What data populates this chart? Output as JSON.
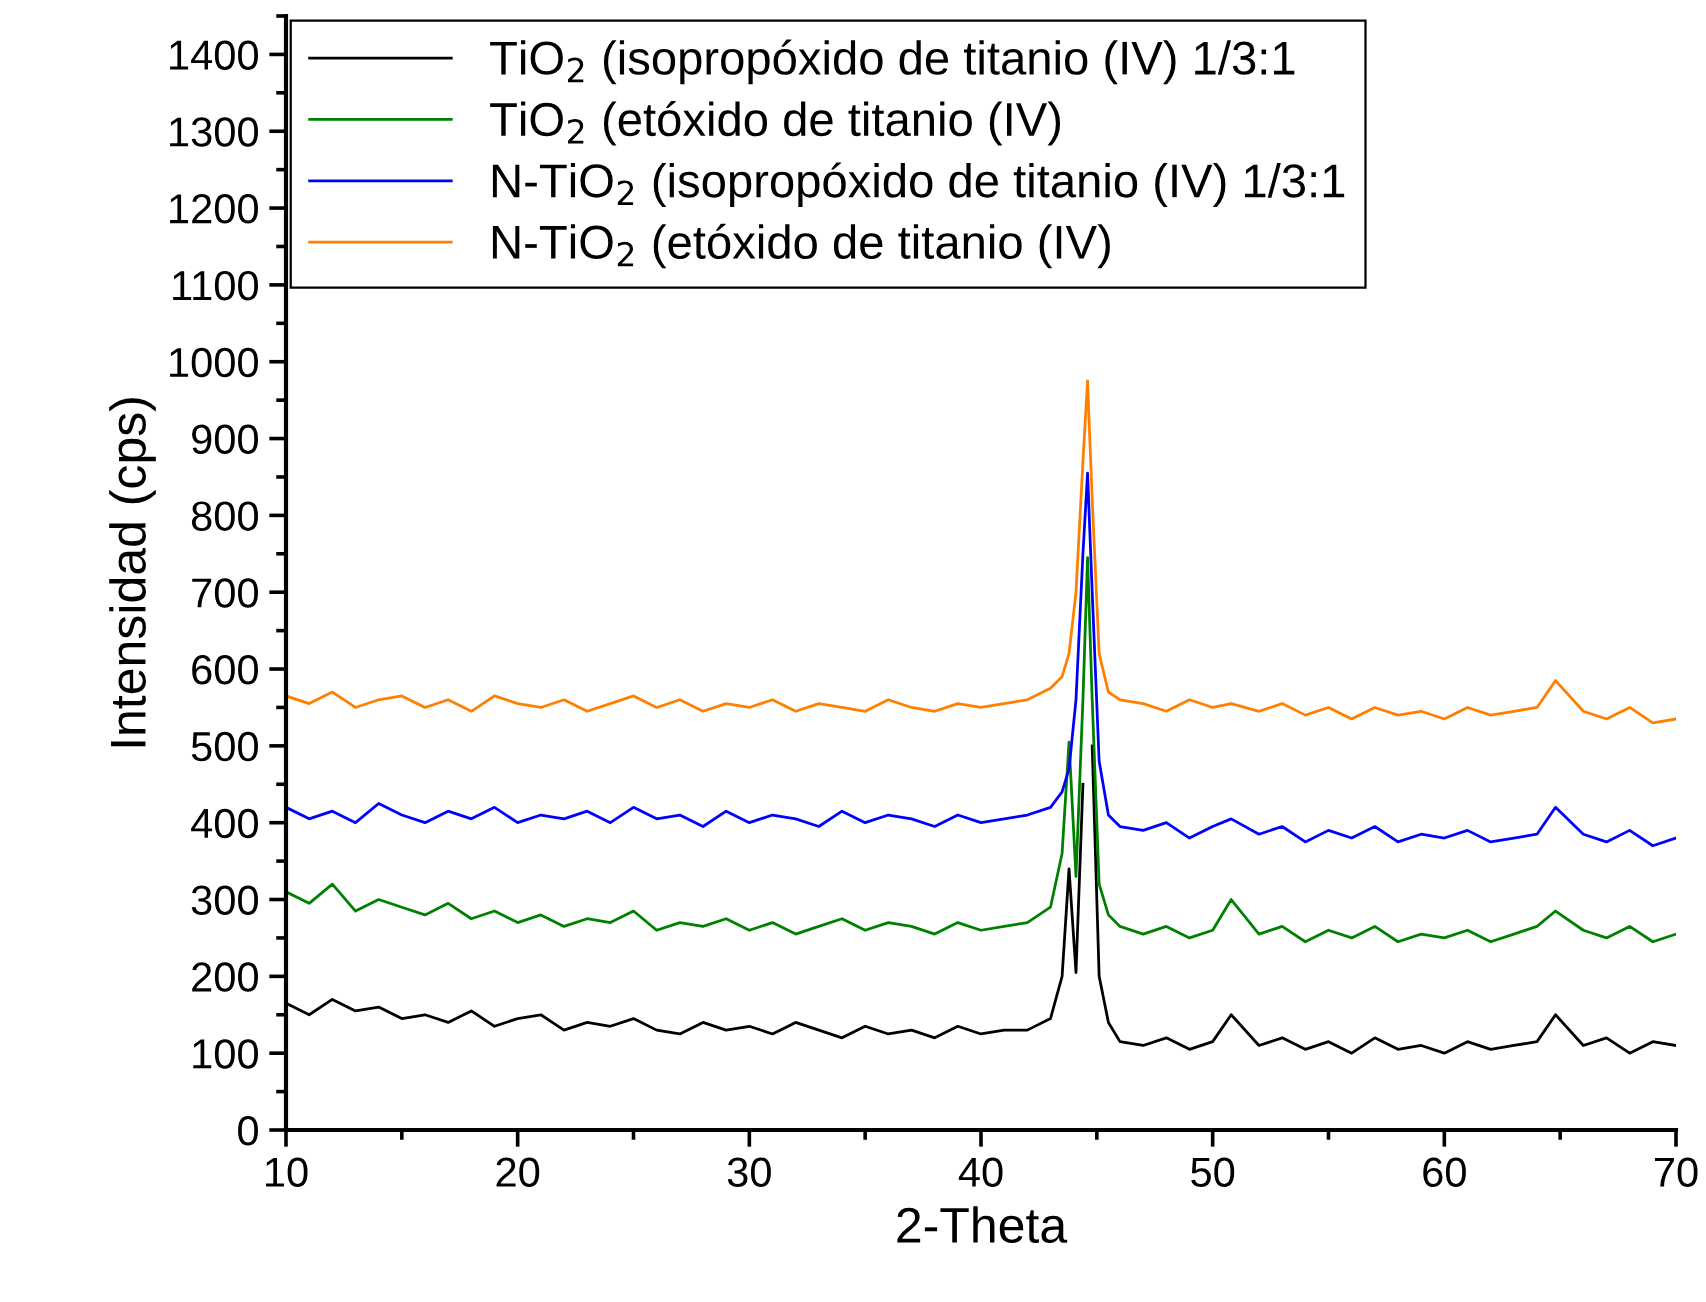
{
  "chart_data": {
    "type": "line",
    "xlabel": "2-Theta",
    "ylabel": "Intensidad (cps)",
    "x": [
      10,
      11,
      12,
      13,
      14,
      15,
      16,
      17,
      18,
      19,
      20,
      21,
      22,
      23,
      24,
      25,
      26,
      27,
      28,
      29,
      30,
      31,
      32,
      33,
      34,
      35,
      36,
      37,
      38,
      39,
      40,
      41,
      42,
      43,
      43.5,
      43.8,
      44.1,
      44.4,
      44.6,
      44.8,
      45.1,
      45.5,
      46,
      47,
      48,
      49,
      50,
      50.8,
      52,
      53,
      54,
      55,
      56,
      57,
      58,
      59,
      60,
      61,
      62,
      63,
      64,
      64.8,
      66,
      67,
      68,
      69,
      70
    ],
    "series": [
      {
        "name": "TiO$_{2}$ (isopropóxido de titanio (IV) 1/3:1",
        "color": "#000000",
        "values": [
          165,
          150,
          170,
          155,
          160,
          145,
          150,
          140,
          155,
          135,
          145,
          150,
          130,
          140,
          135,
          145,
          130,
          125,
          140,
          130,
          135,
          125,
          140,
          130,
          120,
          135,
          125,
          130,
          120,
          135,
          125,
          130,
          130,
          145,
          200,
          340,
          205,
          450,
          null,
          500,
          200,
          140,
          115,
          110,
          120,
          105,
          115,
          150,
          110,
          120,
          105,
          115,
          100,
          120,
          105,
          110,
          100,
          115,
          105,
          110,
          115,
          150,
          110,
          120,
          100,
          115,
          110
        ]
      },
      {
        "name": "TiO$_{2}$ (etóxido de titanio (IV)",
        "color": "#008000",
        "values": [
          310,
          295,
          320,
          285,
          300,
          290,
          280,
          295,
          275,
          285,
          270,
          280,
          265,
          275,
          270,
          285,
          260,
          270,
          265,
          275,
          260,
          270,
          255,
          265,
          275,
          260,
          270,
          265,
          255,
          270,
          260,
          265,
          270,
          290,
          360,
          505,
          330,
          560,
          745,
          560,
          320,
          280,
          265,
          255,
          265,
          250,
          260,
          300,
          255,
          265,
          245,
          260,
          250,
          265,
          245,
          255,
          250,
          260,
          245,
          255,
          265,
          285,
          260,
          250,
          265,
          245,
          255
        ]
      },
      {
        "name": "N-TiO$_{2}$ (isopropóxido de titanio (IV) 1/3:1",
        "color": "#0000ff",
        "values": [
          420,
          405,
          415,
          400,
          425,
          410,
          400,
          415,
          405,
          420,
          400,
          410,
          405,
          415,
          400,
          420,
          405,
          410,
          395,
          415,
          400,
          410,
          405,
          395,
          415,
          400,
          410,
          405,
          395,
          410,
          400,
          405,
          410,
          420,
          440,
          470,
          560,
          750,
          855,
          700,
          480,
          410,
          395,
          390,
          400,
          380,
          395,
          405,
          385,
          395,
          375,
          390,
          380,
          395,
          375,
          385,
          380,
          390,
          375,
          380,
          385,
          420,
          385,
          375,
          390,
          370,
          380
        ]
      },
      {
        "name": "N-TiO$_{2}$ (etóxido de titanio (IV)",
        "color": "#ff8000",
        "values": [
          565,
          555,
          570,
          550,
          560,
          565,
          550,
          560,
          545,
          565,
          555,
          550,
          560,
          545,
          555,
          565,
          550,
          560,
          545,
          555,
          550,
          560,
          545,
          555,
          550,
          545,
          560,
          550,
          545,
          555,
          550,
          555,
          560,
          575,
          590,
          620,
          700,
          870,
          975,
          820,
          620,
          570,
          560,
          555,
          545,
          560,
          550,
          555,
          545,
          555,
          540,
          550,
          535,
          550,
          540,
          545,
          535,
          550,
          540,
          545,
          550,
          585,
          545,
          535,
          550,
          530,
          535
        ]
      }
    ],
    "xlim": [
      10,
      70
    ],
    "xticks": [
      10,
      20,
      30,
      40,
      50,
      60,
      70
    ],
    "ylim": [
      0,
      1450
    ],
    "yticks": [
      0,
      100,
      200,
      300,
      400,
      500,
      600,
      700,
      800,
      900,
      1000,
      1100,
      1200,
      1300,
      1400
    ],
    "grid": false,
    "legend": "top left",
    "marker": "none",
    "line_style": "solid"
  }
}
